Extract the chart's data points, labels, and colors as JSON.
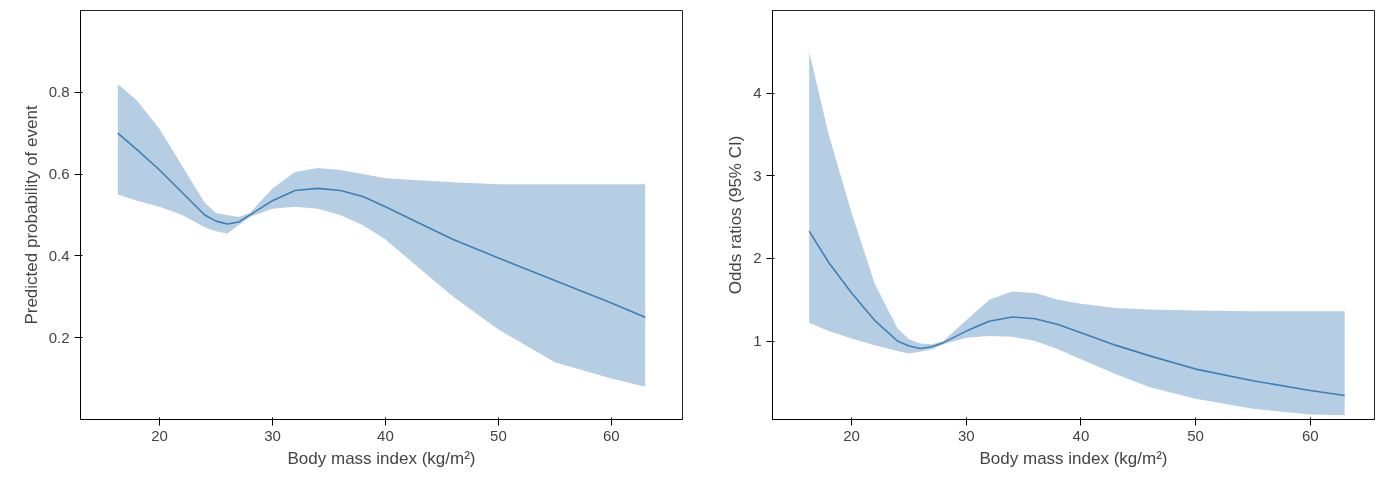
{
  "chart_data": [
    {
      "type": "line",
      "xlabel": "Body mass index (kg/m²)",
      "ylabel": "Predicted probability of event",
      "xlim": [
        13,
        66.3
      ],
      "ylim": [
        0,
        1
      ],
      "xticks": [
        20,
        30,
        40,
        50,
        60
      ],
      "yticks": [
        0.2,
        0.4,
        0.6,
        0.8
      ],
      "grid": false,
      "series": [
        {
          "color": "#3f7fb5",
          "x": [
            16.3,
            18,
            20,
            22,
            24,
            25,
            26,
            27,
            28,
            30,
            32,
            34,
            36,
            38,
            40,
            43,
            46,
            50,
            55,
            60,
            63
          ],
          "values": [
            0.7,
            0.66,
            0.61,
            0.555,
            0.5,
            0.485,
            0.478,
            0.483,
            0.5,
            0.535,
            0.56,
            0.565,
            0.56,
            0.545,
            0.52,
            0.48,
            0.44,
            0.395,
            0.34,
            0.285,
            0.25
          ],
          "lower": [
            0.55,
            0.535,
            0.52,
            0.5,
            0.47,
            0.46,
            0.455,
            0.475,
            0.495,
            0.515,
            0.52,
            0.515,
            0.5,
            0.475,
            0.44,
            0.37,
            0.3,
            0.22,
            0.14,
            0.1,
            0.08
          ],
          "upper": [
            0.82,
            0.78,
            0.71,
            0.62,
            0.53,
            0.505,
            0.5,
            0.495,
            0.505,
            0.565,
            0.605,
            0.615,
            0.61,
            0.6,
            0.59,
            0.585,
            0.58,
            0.575,
            0.575,
            0.575,
            0.575
          ]
        }
      ]
    },
    {
      "type": "line",
      "xlabel": "Body mass index (kg/m²)",
      "ylabel": "Odds ratios (95% CI)",
      "xlim": [
        13.1,
        65.6
      ],
      "ylim": [
        0.05,
        5
      ],
      "xticks": [
        20,
        30,
        40,
        50,
        60
      ],
      "yticks": [
        1,
        2,
        3,
        4
      ],
      "grid": false,
      "series": [
        {
          "color": "#3f7fb5",
          "x": [
            16.3,
            18,
            20,
            22,
            24,
            25,
            26,
            27,
            28,
            30,
            32,
            34,
            36,
            38,
            40,
            43,
            46,
            50,
            55,
            60,
            63
          ],
          "values": [
            2.33,
            1.95,
            1.58,
            1.25,
            1.0,
            0.94,
            0.91,
            0.93,
            0.98,
            1.12,
            1.24,
            1.29,
            1.27,
            1.2,
            1.1,
            0.95,
            0.82,
            0.66,
            0.52,
            0.4,
            0.34
          ],
          "lower": [
            1.22,
            1.12,
            1.03,
            0.95,
            0.88,
            0.85,
            0.87,
            0.9,
            0.96,
            1.04,
            1.06,
            1.05,
            1.0,
            0.9,
            0.78,
            0.6,
            0.44,
            0.3,
            0.18,
            0.11,
            0.1
          ],
          "upper": [
            4.5,
            3.5,
            2.55,
            1.7,
            1.15,
            1.02,
            0.97,
            0.96,
            1.0,
            1.25,
            1.5,
            1.6,
            1.58,
            1.5,
            1.45,
            1.4,
            1.38,
            1.37,
            1.36,
            1.36,
            1.36
          ]
        }
      ]
    }
  ]
}
